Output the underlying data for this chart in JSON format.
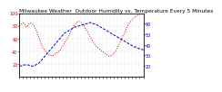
{
  "title": "Milwaukee Weather  Outdoor Humidity vs. Temperature Every 5 Minutes",
  "humidity": [
    80,
    83,
    85,
    82,
    78,
    82,
    85,
    83,
    80,
    75,
    68,
    60,
    52,
    45,
    42,
    38,
    36,
    34,
    32,
    34,
    36,
    38,
    40,
    43,
    48,
    52,
    57,
    62,
    68,
    73,
    78,
    82,
    86,
    87,
    86,
    84,
    80,
    75,
    70,
    65,
    60,
    55,
    50,
    47,
    45,
    42,
    40,
    38,
    36,
    34,
    32,
    33,
    35,
    38,
    42,
    48,
    54,
    60,
    66,
    72,
    78,
    83,
    87,
    90,
    93,
    95,
    97,
    98,
    98,
    99
  ],
  "temperature": [
    20,
    20,
    21,
    21,
    21,
    21,
    20,
    20,
    20,
    21,
    22,
    23,
    25,
    27,
    29,
    31,
    33,
    35,
    37,
    39,
    41,
    43,
    45,
    47,
    49,
    51,
    52,
    53,
    54,
    55,
    56,
    57,
    57,
    58,
    58,
    59,
    59,
    60,
    60,
    61,
    61,
    60,
    60,
    59,
    58,
    57,
    56,
    55,
    54,
    53,
    52,
    51,
    50,
    49,
    48,
    47,
    46,
    45,
    44,
    43,
    42,
    41,
    40,
    39,
    38,
    38,
    37,
    36,
    36,
    35
  ],
  "ylim_humidity": [
    0,
    100
  ],
  "ylim_temp": [
    10,
    70
  ],
  "yticks_humidity": [
    20,
    40,
    60,
    80,
    100
  ],
  "yticks_temp": [
    20,
    30,
    40,
    50,
    60
  ],
  "humidity_color": "#cc0000",
  "temp_color": "#0000cc",
  "bg_color": "#ffffff",
  "grid_color": "#bbbbbb",
  "title_fontsize": 4.2,
  "tick_fontsize": 3.5,
  "line_width": 0.7
}
